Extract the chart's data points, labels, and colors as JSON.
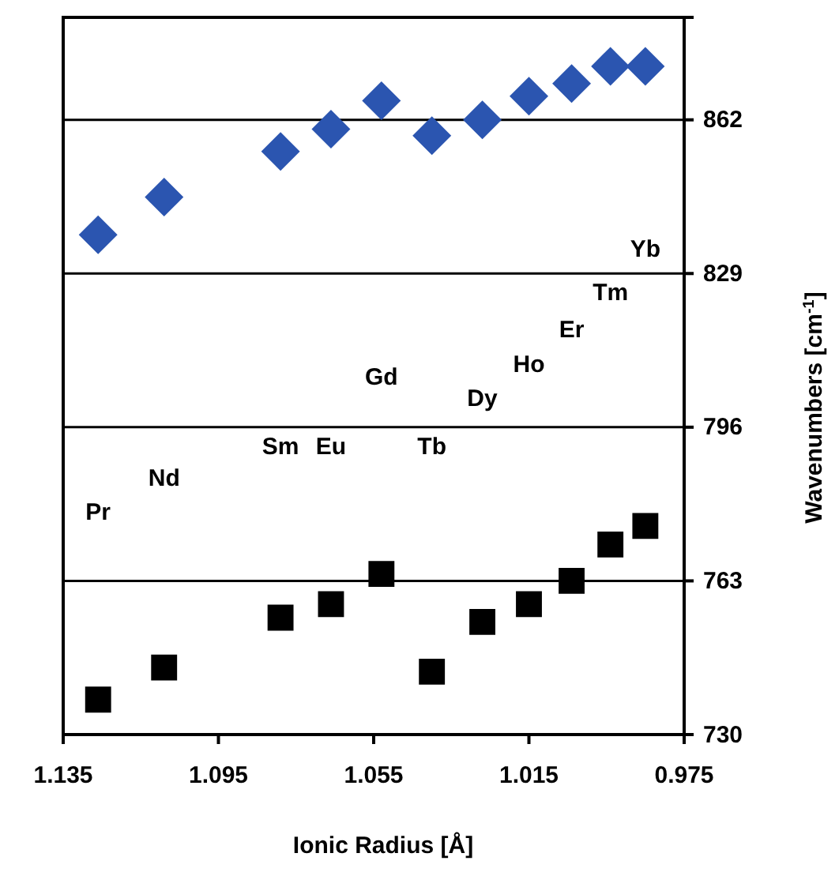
{
  "chart_data": {
    "type": "scatter",
    "xlabel": "Ionic Radius [Å]",
    "ylabel": "Wavenumbers [cm$^{-1}$]",
    "x": [
      1.126,
      1.109,
      1.079,
      1.066,
      1.053,
      1.04,
      1.027,
      1.015,
      1.004,
      0.994,
      0.985
    ],
    "xlim": [
      1.135,
      0.975
    ],
    "xticks": [
      1.135,
      1.095,
      1.055,
      1.015,
      0.975
    ],
    "ylim": [
      730,
      884
    ],
    "yticks": [
      730,
      763,
      796,
      829,
      862
    ],
    "grid": "y",
    "series": [
      {
        "color": "#2b55b0",
        "marker": "diamond",
        "values": [
          837.3,
          845.4,
          855.2,
          860.0,
          866.1,
          858.6,
          862.0,
          867.1,
          869.8,
          873.5,
          873.5
        ]
      },
      {
        "color": "#000000",
        "marker": "square",
        "values": [
          737.5,
          744.4,
          755.1,
          758.0,
          764.5,
          743.5,
          754.2,
          758.0,
          763.0,
          770.8,
          774.8
        ]
      }
    ],
    "annotations": [
      "Pr",
      "Nd",
      "Sm",
      "Eu",
      "Gd",
      "Tb",
      "Dy",
      "Ho",
      "Er",
      "Tm",
      "Yb"
    ]
  }
}
